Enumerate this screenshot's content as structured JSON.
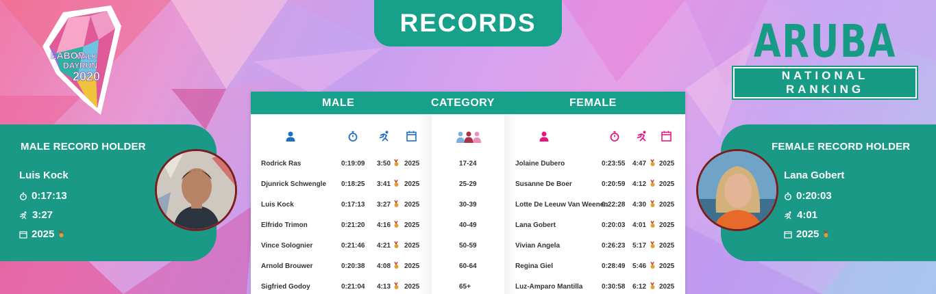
{
  "header": {
    "records_label": "RECORDS"
  },
  "brand": {
    "logo_icon": "labor-day-walk-run-2020-logo",
    "country": "ARUBA",
    "subtitle": "NATIONAL RANKING"
  },
  "table": {
    "headers": {
      "male": "MALE",
      "category": "CATEGORY",
      "female": "FEMALE"
    },
    "icons": [
      "person-icon",
      "stopwatch-icon",
      "runner-icon",
      "calendar-icon",
      "group-icon"
    ],
    "rows": [
      {
        "male": {
          "name": "Rodrick Ras",
          "time": "0:19:09",
          "pace": "3:50",
          "year": "2025"
        },
        "category": "17-24",
        "female": {
          "name": "Jolaine Dubero",
          "time": "0:23:55",
          "pace": "4:47",
          "year": "2025"
        }
      },
      {
        "male": {
          "name": "Djunrick Schwengle",
          "time": "0:18:25",
          "pace": "3:41",
          "year": "2025"
        },
        "category": "25-29",
        "female": {
          "name": "Susanne De Boer",
          "time": "0:20:59",
          "pace": "4:12",
          "year": "2025"
        }
      },
      {
        "male": {
          "name": "Luis Kock",
          "time": "0:17:13",
          "pace": "3:27",
          "year": "2025"
        },
        "category": "30-39",
        "female": {
          "name": "Lotte De Leeuw Van Weenen",
          "time": "0:22:28",
          "pace": "4:30",
          "year": "2025"
        }
      },
      {
        "male": {
          "name": "Elfrido Trimon",
          "time": "0:21:20",
          "pace": "4:16",
          "year": "2025"
        },
        "category": "40-49",
        "female": {
          "name": "Lana Gobert",
          "time": "0:20:03",
          "pace": "4:01",
          "year": "2025"
        }
      },
      {
        "male": {
          "name": "Vince Solognier",
          "time": "0:21:46",
          "pace": "4:21",
          "year": "2025"
        },
        "category": "50-59",
        "female": {
          "name": "Vivian Angela",
          "time": "0:26:23",
          "pace": "5:17",
          "year": "2025"
        }
      },
      {
        "male": {
          "name": "Arnold Brouwer",
          "time": "0:20:38",
          "pace": "4:08",
          "year": "2025"
        },
        "category": "60-64",
        "female": {
          "name": "Regina Giel",
          "time": "0:28:49",
          "pace": "5:46",
          "year": "2025"
        }
      },
      {
        "male": {
          "name": "Sigfried Godoy",
          "time": "0:21:04",
          "pace": "4:13",
          "year": "2025"
        },
        "category": "65+",
        "female": {
          "name": "Luz-Amparo Mantilla",
          "time": "0:30:58",
          "pace": "6:12",
          "year": "2025"
        }
      }
    ]
  },
  "male_holder": {
    "title": "MALE RECORD HOLDER",
    "name": "Luis Kock",
    "time": "0:17:13",
    "pace": "3:27",
    "year": "2025"
  },
  "female_holder": {
    "title": "FEMALE RECORD HOLDER",
    "name": "Lana Gobert",
    "time": "0:20:03",
    "pace": "4:01",
    "year": "2025"
  },
  "colors": {
    "teal": "#17a08a",
    "male_icon": "#1f6fbf",
    "female_icon": "#e6187f",
    "medal": "#d98b2b"
  }
}
